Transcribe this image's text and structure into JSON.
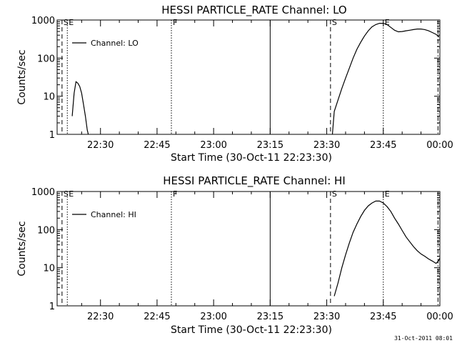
{
  "footer_timestamp": "31-Oct-2011 08:01",
  "chart_data": [
    {
      "type": "line",
      "title": "HESSI PARTICLE_RATE Channel: LO",
      "xlabel": "Start Time (30-Oct-11 22:23:30)",
      "ylabel": "Counts/sec",
      "y_scale": "log",
      "ylim": [
        1,
        1000
      ],
      "y_ticks": [
        1,
        10,
        100,
        1000
      ],
      "y_tick_labels": [
        "1",
        "10",
        "100",
        "1000"
      ],
      "xlim_min": [
        -4.5,
        97
      ],
      "x_tick_min": [
        7,
        22,
        37,
        52,
        67,
        82,
        97
      ],
      "x_tick_labels": [
        "22:30",
        "22:45",
        "23:00",
        "23:15",
        "23:30",
        "23:45",
        "00:00"
      ],
      "legend": {
        "label": "Channel: LO",
        "position": "top-left"
      },
      "series": [
        {
          "name": "Channel: LO",
          "segment": 1,
          "points": [
            [
              -0.5,
              3
            ],
            [
              0,
              12
            ],
            [
              0.5,
              24
            ],
            [
              1,
              22
            ],
            [
              1.5,
              18
            ],
            [
              2,
              12
            ],
            [
              2.5,
              6
            ],
            [
              3,
              3
            ],
            [
              3.5,
              1.3
            ],
            [
              4,
              0.8
            ]
          ]
        },
        {
          "name": "Channel: LO",
          "segment": 2,
          "points": [
            [
              68.5,
              1
            ],
            [
              69,
              4
            ],
            [
              70,
              8
            ],
            [
              71,
              16
            ],
            [
              72,
              30
            ],
            [
              73,
              55
            ],
            [
              74,
              100
            ],
            [
              75,
              170
            ],
            [
              76,
              260
            ],
            [
              77,
              380
            ],
            [
              78,
              520
            ],
            [
              79,
              660
            ],
            [
              80,
              760
            ],
            [
              81,
              820
            ],
            [
              82,
              820
            ],
            [
              83,
              760
            ],
            [
              84,
              640
            ],
            [
              85,
              540
            ],
            [
              86,
              490
            ],
            [
              87,
              500
            ],
            [
              88,
              520
            ],
            [
              89,
              540
            ],
            [
              90,
              560
            ],
            [
              91,
              580
            ],
            [
              92,
              580
            ],
            [
              93,
              560
            ],
            [
              94,
              520
            ],
            [
              95,
              470
            ],
            [
              96,
              420
            ],
            [
              96.8,
              360
            ]
          ]
        }
      ],
      "markers": [
        {
          "label": "S",
          "x_min": -3.2,
          "style": "dashed"
        },
        {
          "label": "E",
          "x_min": -1.8,
          "style": "dotted"
        },
        {
          "label": "F",
          "x_min": 25.8,
          "style": "dotted"
        },
        {
          "label": "",
          "x_min": 52,
          "style": "solid"
        },
        {
          "label": "S",
          "x_min": 68,
          "style": "dashed"
        },
        {
          "label": "E",
          "x_min": 82,
          "style": "dotted"
        },
        {
          "label": "",
          "x_min": 96.5,
          "style": "dashdot"
        }
      ],
      "grid": false
    },
    {
      "type": "line",
      "title": "HESSI PARTICLE_RATE Channel: HI",
      "xlabel": "Start Time (30-Oct-11 22:23:30)",
      "ylabel": "Counts/sec",
      "y_scale": "log",
      "ylim": [
        1,
        1000
      ],
      "y_ticks": [
        1,
        10,
        100,
        1000
      ],
      "y_tick_labels": [
        "1",
        "10",
        "100",
        "1000"
      ],
      "xlim_min": [
        -4.5,
        97
      ],
      "x_tick_min": [
        7,
        22,
        37,
        52,
        67,
        82,
        97
      ],
      "x_tick_labels": [
        "22:30",
        "22:45",
        "23:00",
        "23:15",
        "23:30",
        "23:45",
        "00:00"
      ],
      "legend": {
        "label": "Channel: HI",
        "position": "top-left"
      },
      "series": [
        {
          "name": "Channel: HI",
          "segment": 1,
          "points": [
            [
              69,
              1.8
            ],
            [
              70,
              4
            ],
            [
              71,
              10
            ],
            [
              72,
              22
            ],
            [
              73,
              45
            ],
            [
              74,
              85
            ],
            [
              75,
              140
            ],
            [
              76,
              220
            ],
            [
              77,
              320
            ],
            [
              78,
              420
            ],
            [
              79,
              500
            ],
            [
              80,
              560
            ],
            [
              81,
              560
            ],
            [
              82,
              500
            ],
            [
              83,
              400
            ],
            [
              84,
              300
            ],
            [
              85,
              200
            ],
            [
              86,
              140
            ],
            [
              87,
              95
            ],
            [
              88,
              65
            ],
            [
              89,
              48
            ],
            [
              90,
              36
            ],
            [
              91,
              28
            ],
            [
              92,
              23
            ],
            [
              93,
              20
            ],
            [
              94,
              17
            ],
            [
              95,
              15
            ],
            [
              96,
              13
            ],
            [
              96.6,
              15
            ],
            [
              97,
              18
            ]
          ]
        }
      ],
      "markers": [
        {
          "label": "S",
          "x_min": -3.2,
          "style": "dashed"
        },
        {
          "label": "E",
          "x_min": -1.8,
          "style": "dotted"
        },
        {
          "label": "F",
          "x_min": 25.8,
          "style": "dotted"
        },
        {
          "label": "",
          "x_min": 52,
          "style": "solid"
        },
        {
          "label": "S",
          "x_min": 68,
          "style": "dashed"
        },
        {
          "label": "E",
          "x_min": 82,
          "style": "dotted"
        },
        {
          "label": "",
          "x_min": 96.5,
          "style": "dashdot"
        }
      ],
      "grid": false
    }
  ]
}
